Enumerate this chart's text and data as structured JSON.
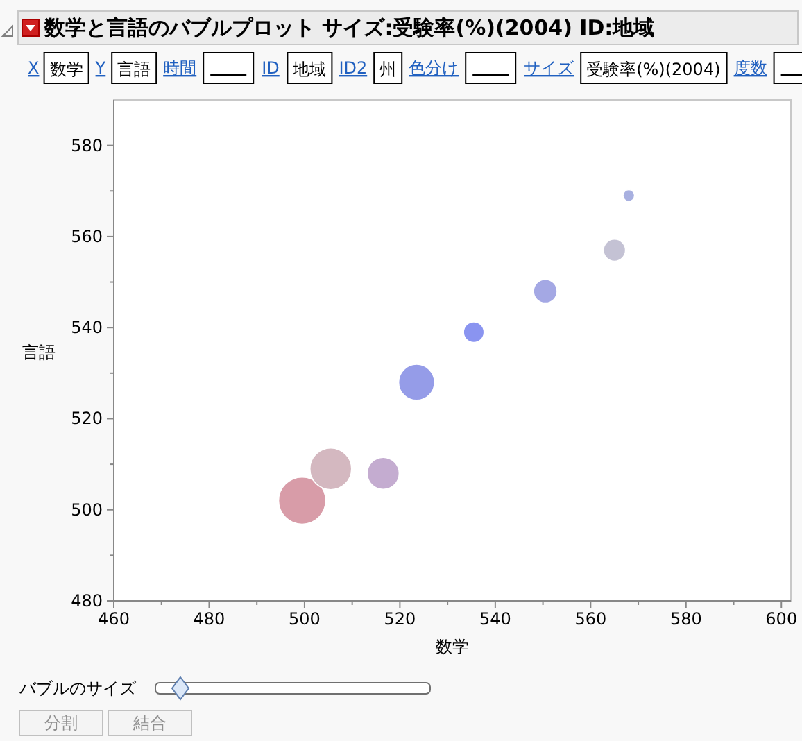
{
  "chart_data": {
    "type": "bubble",
    "title": "数学と言語のバブルプロット サイズ:受験率(%)(2004)  ID:地域",
    "xlabel": "数学",
    "ylabel": "言語",
    "x": [
      568,
      565,
      550.5,
      535.5,
      523.5,
      499.5,
      505.5,
      516.5
    ],
    "values": [
      569,
      557,
      548,
      539,
      528,
      502,
      509,
      508
    ],
    "sizes": [
      0.06,
      0.22,
      0.25,
      0.19,
      0.58,
      1,
      0.78,
      0.46
    ],
    "colors": [
      "#a8b0e0",
      "#c4c2d4",
      "#a4a8e4",
      "#8a94f0",
      "#959ce8",
      "#d89ca8",
      "#d4b8c0",
      "#c4acd0"
    ],
    "xlim": [
      460,
      602
    ],
    "ylim": [
      480,
      590
    ],
    "xticks": [
      460,
      {
        "value": 470,
        "label": null
      },
      480,
      {
        "value": 490,
        "label": null
      },
      500,
      {
        "value": 510,
        "label": null
      },
      520,
      {
        "value": 530,
        "label": null
      },
      540,
      {
        "value": 550,
        "label": null
      },
      560,
      {
        "value": 570,
        "label": null
      },
      580,
      {
        "value": 590,
        "label": null
      },
      600
    ],
    "yticks": [
      480,
      {
        "value": 490,
        "label": null
      },
      500,
      {
        "value": 510,
        "label": null
      },
      520,
      {
        "value": 530,
        "label": null
      },
      540,
      {
        "value": 550,
        "label": null
      },
      560,
      {
        "value": 570,
        "label": null
      },
      580
    ],
    "grid": false,
    "annotations": [
      "X",
      "数学",
      "Y",
      "言語",
      "時間",
      "ID",
      "地域",
      "ID2",
      "州",
      "色分け",
      "サイズ",
      "受験率(%)(2004)",
      "度数",
      "バブルのサイズ",
      "分割",
      "結合"
    ]
  }
}
